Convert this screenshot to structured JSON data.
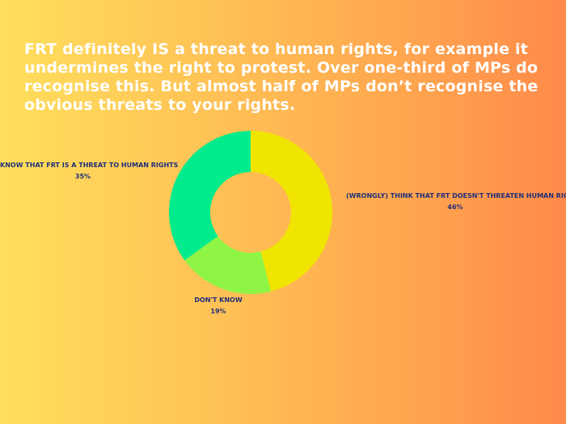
{
  "chart_data": {
    "type": "pie",
    "variant": "donut",
    "title": "FRT definitely IS a threat to human rights, for example it undermines the right to protest. Over one-third of MPs do recognise this. But almost half of MPs don’t recognise the obvious threats to your rights.",
    "slices": [
      {
        "label": "(WRONGLY) THINK THAT FRT DOESN'T THREATEN HUMAN RIGHTS",
        "value": 46,
        "display": "46%",
        "color": "#f0e500"
      },
      {
        "label": "DON'T KNOW",
        "value": 19,
        "display": "19%",
        "color": "#8ff545"
      },
      {
        "label": "KNOW THAT FRT IS A THREAT TO HUMAN RIGHTS",
        "value": 35,
        "display": "35%",
        "color": "#00ec8c"
      }
    ],
    "legend": "none"
  }
}
